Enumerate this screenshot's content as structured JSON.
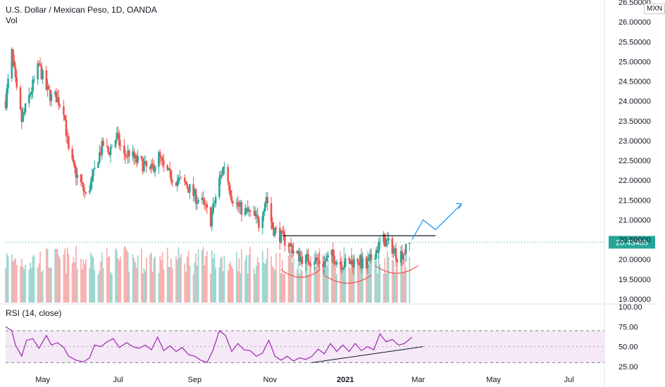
{
  "header": {
    "title": "U.S. Dollar / Mexican Peso, 1D, OANDA",
    "vol_label": "Vol",
    "currency": "MXN"
  },
  "colors": {
    "up": "#26a69a",
    "down": "#ef5350",
    "rsi_line": "#9c27b0",
    "rsi_band": "#9c27b0",
    "projection": "#2196f3",
    "last_price": "#26a69a"
  },
  "chart_data": [
    {
      "type": "candlestick",
      "title": "U.S. Dollar / Mexican Peso, 1D, OANDA",
      "ylim": [
        19.0,
        26.5
      ],
      "y_ticks": [
        "19.00000",
        "19.50000",
        "20.00000",
        "20.50000",
        "21.00000",
        "21.50000",
        "22.00000",
        "22.50000",
        "23.00000",
        "23.50000",
        "24.00000",
        "24.50000",
        "25.00000",
        "25.50000",
        "26.00000",
        "26.50000"
      ],
      "x_ticks": [
        "May",
        "Jul",
        "Sep",
        "Nov",
        "2021",
        "Mar",
        "May",
        "Jul"
      ],
      "last_price": "20.43405",
      "close_path": [
        [
          "2020-04-01",
          24.0
        ],
        [
          "2020-04-06",
          25.2
        ],
        [
          "2020-04-10",
          24.2
        ],
        [
          "2020-04-14",
          23.5
        ],
        [
          "2020-04-20",
          24.1
        ],
        [
          "2020-04-24",
          24.5
        ],
        [
          "2020-04-28",
          24.9
        ],
        [
          "2020-05-04",
          24.3
        ],
        [
          "2020-05-08",
          24.1
        ],
        [
          "2020-05-12",
          24.1
        ],
        [
          "2020-05-18",
          23.8
        ],
        [
          "2020-05-22",
          22.7
        ],
        [
          "2020-05-26",
          22.3
        ],
        [
          "2020-06-01",
          21.9
        ],
        [
          "2020-06-05",
          21.6
        ],
        [
          "2020-06-10",
          22.0
        ],
        [
          "2020-06-15",
          22.6
        ],
        [
          "2020-06-19",
          22.9
        ],
        [
          "2020-06-23",
          22.7
        ],
        [
          "2020-06-30",
          23.1
        ],
        [
          "2020-07-06",
          22.6
        ],
        [
          "2020-07-10",
          22.7
        ],
        [
          "2020-07-15",
          22.5
        ],
        [
          "2020-07-21",
          22.4
        ],
        [
          "2020-07-27",
          22.2
        ],
        [
          "2020-08-03",
          22.6
        ],
        [
          "2020-08-07",
          22.3
        ],
        [
          "2020-08-12",
          22.1
        ],
        [
          "2020-08-18",
          22.0
        ],
        [
          "2020-08-25",
          21.9
        ],
        [
          "2020-09-01",
          21.6
        ],
        [
          "2020-09-08",
          21.4
        ],
        [
          "2020-09-14",
          21.0
        ],
        [
          "2020-09-21",
          22.0
        ],
        [
          "2020-09-25",
          22.4
        ],
        [
          "2020-10-01",
          21.6
        ],
        [
          "2020-10-07",
          21.3
        ],
        [
          "2020-10-13",
          21.2
        ],
        [
          "2020-10-19",
          21.1
        ],
        [
          "2020-10-23",
          20.9
        ],
        [
          "2020-10-29",
          21.6
        ],
        [
          "2020-11-03",
          20.8
        ],
        [
          "2020-11-09",
          20.6
        ],
        [
          "2020-11-16",
          20.4
        ],
        [
          "2020-11-23",
          20.1
        ],
        [
          "2020-11-30",
          20.0
        ],
        [
          "2020-12-07",
          20.0
        ],
        [
          "2020-12-14",
          19.9
        ],
        [
          "2020-12-21",
          20.1
        ],
        [
          "2020-12-28",
          19.9
        ],
        [
          "2021-01-04",
          19.9
        ],
        [
          "2021-01-11",
          20.0
        ],
        [
          "2021-01-18",
          19.8
        ],
        [
          "2021-01-25",
          20.2
        ],
        [
          "2021-02-01",
          20.5
        ],
        [
          "2021-02-08",
          20.3
        ],
        [
          "2021-02-12",
          20.1
        ],
        [
          "2021-02-18",
          20.2
        ],
        [
          "2021-02-23",
          20.43
        ]
      ],
      "annotations": {
        "resistance_line": {
          "y": 20.6,
          "x_start": "2020-11-11",
          "x_end": "2021-03-15"
        },
        "projection_path": [
          [
            "2021-02-24",
            20.5
          ],
          [
            "2021-03-05",
            21.0
          ],
          [
            "2021-03-15",
            20.75
          ],
          [
            "2021-04-05",
            21.4
          ]
        ],
        "arcs": [
          {
            "x_start": "2020-11-10",
            "x_end": "2020-12-12",
            "y_top": 19.75,
            "y_bottom": 19.55
          },
          {
            "x_start": "2020-12-15",
            "x_end": "2021-01-22",
            "y_top": 19.6,
            "y_bottom": 19.4
          },
          {
            "x_start": "2021-01-25",
            "x_end": "2021-03-01",
            "y_top": 19.85,
            "y_bottom": 19.65
          }
        ]
      }
    },
    {
      "type": "line",
      "title": "RSI (14, close)",
      "ylim": [
        25,
        100
      ],
      "y_ticks": [
        "25.00",
        "50.00",
        "75.00",
        "100.00"
      ],
      "band": [
        30,
        70
      ],
      "points": [
        [
          "2020-04-01",
          75
        ],
        [
          "2020-04-06",
          70
        ],
        [
          "2020-04-09",
          52
        ],
        [
          "2020-04-14",
          38
        ],
        [
          "2020-04-18",
          58
        ],
        [
          "2020-04-23",
          60
        ],
        [
          "2020-04-28",
          48
        ],
        [
          "2020-05-04",
          64
        ],
        [
          "2020-05-08",
          52
        ],
        [
          "2020-05-13",
          55
        ],
        [
          "2020-05-18",
          49
        ],
        [
          "2020-05-22",
          38
        ],
        [
          "2020-05-28",
          33
        ],
        [
          "2020-06-03",
          31
        ],
        [
          "2020-06-08",
          36
        ],
        [
          "2020-06-12",
          52
        ],
        [
          "2020-06-17",
          50
        ],
        [
          "2020-06-22",
          56
        ],
        [
          "2020-06-27",
          60
        ],
        [
          "2020-07-02",
          49
        ],
        [
          "2020-07-08",
          55
        ],
        [
          "2020-07-13",
          50
        ],
        [
          "2020-07-18",
          48
        ],
        [
          "2020-07-23",
          52
        ],
        [
          "2020-07-28",
          46
        ],
        [
          "2020-08-02",
          62
        ],
        [
          "2020-08-07",
          45
        ],
        [
          "2020-08-12",
          51
        ],
        [
          "2020-08-17",
          44
        ],
        [
          "2020-08-22",
          49
        ],
        [
          "2020-08-27",
          40
        ],
        [
          "2020-09-01",
          38
        ],
        [
          "2020-09-06",
          33
        ],
        [
          "2020-09-11",
          30
        ],
        [
          "2020-09-16",
          46
        ],
        [
          "2020-09-21",
          70
        ],
        [
          "2020-09-26",
          64
        ],
        [
          "2020-10-01",
          44
        ],
        [
          "2020-10-06",
          54
        ],
        [
          "2020-10-11",
          46
        ],
        [
          "2020-10-16",
          45
        ],
        [
          "2020-10-21",
          38
        ],
        [
          "2020-10-26",
          42
        ],
        [
          "2020-10-31",
          58
        ],
        [
          "2020-11-05",
          38
        ],
        [
          "2020-11-10",
          33
        ],
        [
          "2020-11-15",
          38
        ],
        [
          "2020-11-20",
          32
        ],
        [
          "2020-11-25",
          36
        ],
        [
          "2020-11-30",
          34
        ],
        [
          "2020-12-05",
          38
        ],
        [
          "2020-12-10",
          47
        ],
        [
          "2020-12-15",
          41
        ],
        [
          "2020-12-20",
          54
        ],
        [
          "2020-12-25",
          44
        ],
        [
          "2020-12-30",
          52
        ],
        [
          "2021-01-04",
          44
        ],
        [
          "2021-01-09",
          54
        ],
        [
          "2021-01-14",
          45
        ],
        [
          "2021-01-19",
          50
        ],
        [
          "2021-01-24",
          46
        ],
        [
          "2021-01-29",
          66
        ],
        [
          "2021-02-03",
          56
        ],
        [
          "2021-02-08",
          59
        ],
        [
          "2021-02-13",
          52
        ],
        [
          "2021-02-18",
          54
        ],
        [
          "2021-02-24",
          62
        ]
      ],
      "trendline": {
        "from": [
          "2020-12-05",
          30
        ],
        "to": [
          "2021-03-05",
          50
        ]
      }
    }
  ]
}
